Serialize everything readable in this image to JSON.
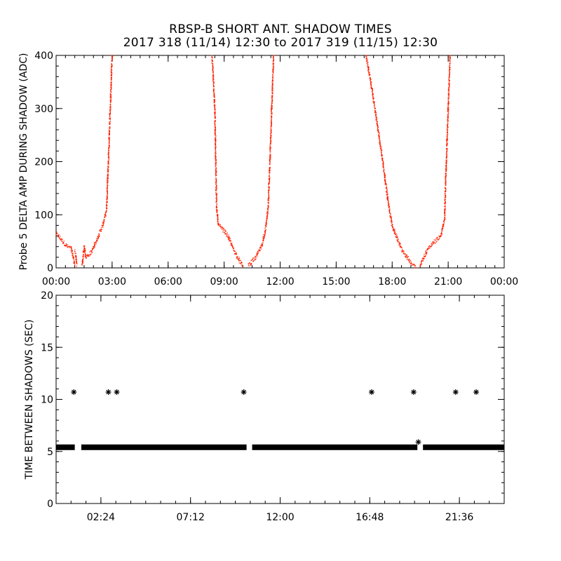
{
  "title_line1": "RBSP-B SHORT ANT. SHADOW TIMES",
  "title_line2": "2017 318 (11/14) 12:30 to 2017 319 (11/15) 12:30",
  "colors": {
    "points": "#ff2000",
    "stars": "#000000",
    "axes": "#000000"
  },
  "chart_data": [
    {
      "type": "scatter",
      "title": "",
      "xlabel": "",
      "ylabel": "Probe 5 DELTA AMP DURING SHADOW (ADC)",
      "xlim": [
        0,
        24
      ],
      "ylim": [
        0,
        400
      ],
      "x_ticks": [
        0,
        3,
        6,
        9,
        12,
        15,
        18,
        21,
        24
      ],
      "x_tick_labels": [
        "00:00",
        "03:00",
        "06:00",
        "09:00",
        "12:00",
        "15:00",
        "18:00",
        "21:00",
        "00:00"
      ],
      "y_ticks": [
        0,
        100,
        200,
        300,
        400
      ],
      "y_tick_labels": [
        "0",
        "100",
        "200",
        "300",
        "400"
      ],
      "grid": false,
      "series": [
        {
          "name": "",
          "segments": [
            [
              [
                0.0,
                65
              ],
              [
                0.3,
                52
              ],
              [
                0.6,
                40
              ],
              [
                0.8,
                38
              ],
              [
                0.95,
                15
              ],
              [
                1.0,
                5
              ]
            ],
            [
              [
                1.0,
                30
              ],
              [
                1.05,
                25
              ],
              [
                1.1,
                5
              ]
            ],
            [
              [
                1.4,
                5
              ],
              [
                1.5,
                40
              ],
              [
                1.6,
                20
              ],
              [
                1.9,
                30
              ],
              [
                2.2,
                55
              ],
              [
                2.5,
                80
              ],
              [
                2.7,
                110
              ],
              [
                2.8,
                200
              ],
              [
                2.9,
                300
              ],
              [
                3.0,
                400
              ]
            ],
            [
              [
                8.35,
                400
              ],
              [
                8.5,
                300
              ],
              [
                8.55,
                200
              ],
              [
                8.6,
                110
              ],
              [
                8.7,
                80
              ],
              [
                9.0,
                70
              ],
              [
                9.2,
                60
              ],
              [
                9.5,
                35
              ],
              [
                9.8,
                15
              ],
              [
                10.0,
                3
              ]
            ],
            [
              [
                10.3,
                5
              ],
              [
                10.7,
                20
              ],
              [
                11.0,
                40
              ],
              [
                11.2,
                70
              ],
              [
                11.35,
                110
              ],
              [
                11.45,
                200
              ],
              [
                11.55,
                300
              ],
              [
                11.65,
                400
              ]
            ],
            [
              [
                16.6,
                400
              ],
              [
                16.9,
                340
              ],
              [
                17.2,
                270
              ],
              [
                17.5,
                200
              ],
              [
                17.8,
                120
              ],
              [
                18.0,
                80
              ],
              [
                18.5,
                35
              ],
              [
                19.0,
                10
              ],
              [
                19.3,
                2
              ]
            ],
            [
              [
                19.5,
                5
              ],
              [
                19.9,
                35
              ],
              [
                20.3,
                50
              ],
              [
                20.6,
                60
              ],
              [
                20.8,
                90
              ],
              [
                20.9,
                200
              ],
              [
                21.0,
                300
              ],
              [
                21.1,
                400
              ]
            ]
          ]
        }
      ]
    },
    {
      "type": "scatter",
      "title": "",
      "xlabel": "",
      "ylabel": "TIME BETWEEN SHADOWS (SEC)",
      "xlim": [
        0,
        24
      ],
      "ylim": [
        0,
        20
      ],
      "x_ticks": [
        2.4,
        7.2,
        12.0,
        16.8,
        21.6
      ],
      "x_tick_labels": [
        "02:24",
        "07:12",
        "12:00",
        "16:48",
        "21:36"
      ],
      "y_ticks": [
        0,
        5,
        10,
        15,
        20
      ],
      "y_tick_labels": [
        "0",
        "5",
        "10",
        "15",
        "20"
      ],
      "grid": false,
      "baseline_value": 5.4,
      "baseline_segments": [
        [
          0,
          1.0
        ],
        [
          1.35,
          10.2
        ],
        [
          10.5,
          19.35
        ],
        [
          19.65,
          24
        ]
      ],
      "outliers": [
        {
          "x": 0.95,
          "y": 10.7
        },
        {
          "x": 2.8,
          "y": 10.7
        },
        {
          "x": 3.25,
          "y": 10.7
        },
        {
          "x": 10.05,
          "y": 10.7
        },
        {
          "x": 16.9,
          "y": 10.7
        },
        {
          "x": 19.15,
          "y": 10.7
        },
        {
          "x": 19.4,
          "y": 5.9
        },
        {
          "x": 21.4,
          "y": 10.7
        },
        {
          "x": 22.5,
          "y": 10.7
        }
      ]
    }
  ]
}
